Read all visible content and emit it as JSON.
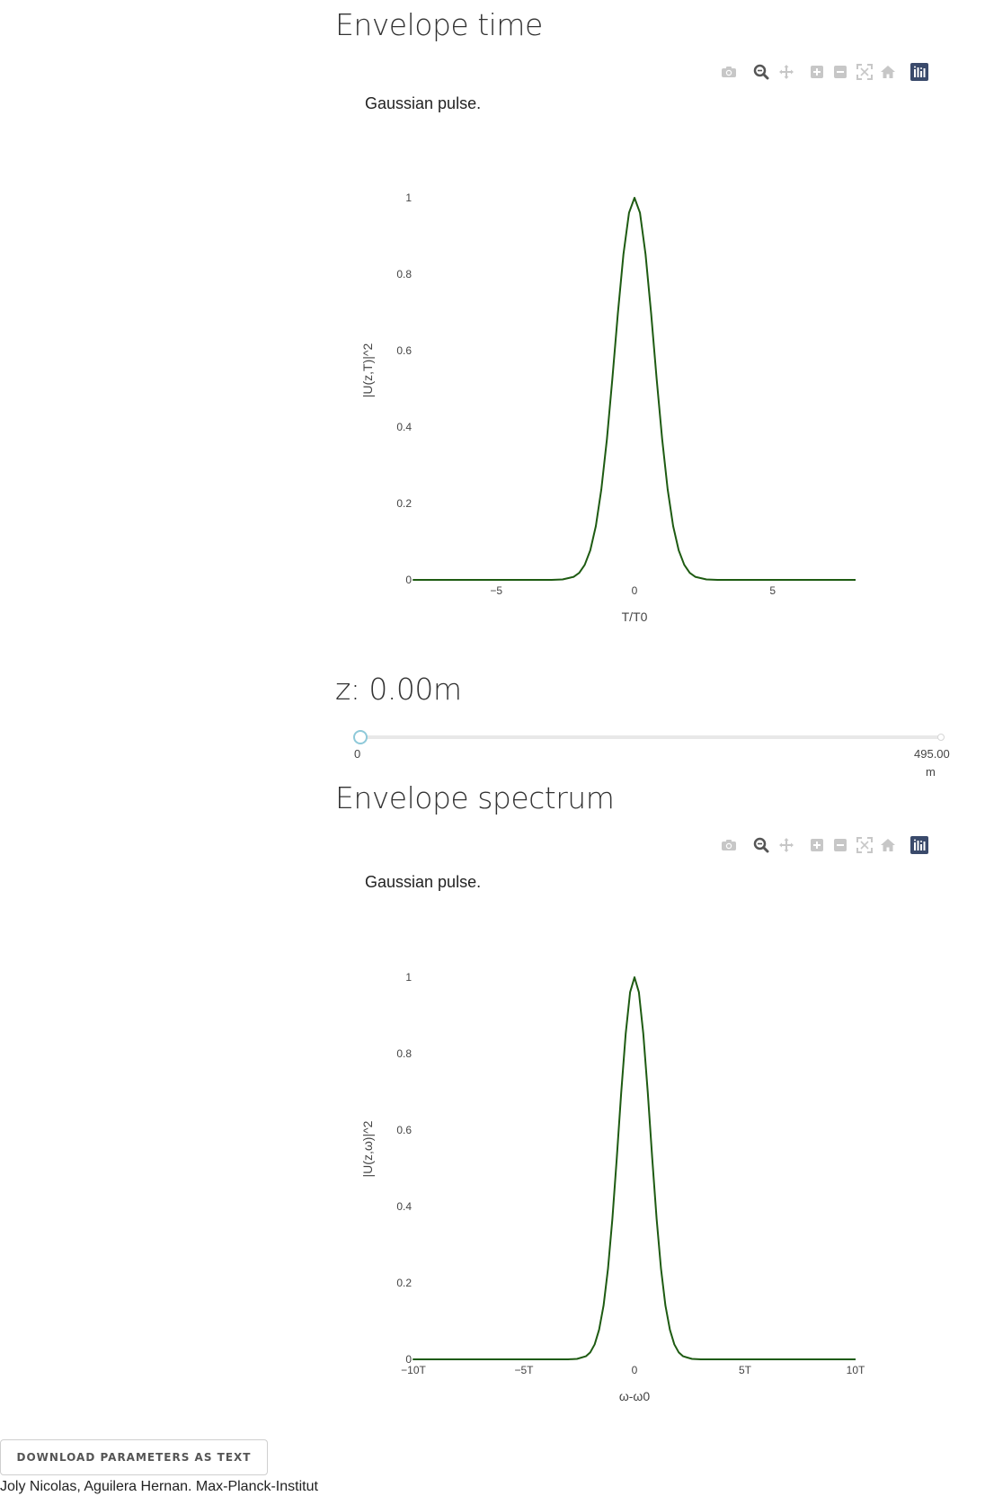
{
  "sections": {
    "time": {
      "title": "Envelope time"
    },
    "spectrum": {
      "title": "Envelope spectrum"
    }
  },
  "slider": {
    "label": "z: 0.00m",
    "min_label": "0",
    "max_label": "495.00",
    "max_unit": "m",
    "value": 0,
    "min": 0,
    "max": 495
  },
  "modebar": {
    "icons": [
      "camera-icon",
      "zoom-icon",
      "pan-icon",
      "zoom-in-icon",
      "zoom-out-icon",
      "autoscale-icon",
      "reset-axes-icon",
      "plotly-logo-icon"
    ]
  },
  "download_button": {
    "label": "DOWNLOAD PARAMETERS AS TEXT"
  },
  "footer": {
    "credits": "Joly Nicolas, Aguilera Hernan. Max-Planck-Institut"
  },
  "colors": {
    "line": "#1e5b12",
    "slider_handle": "#8ec9d9",
    "logo": "#3a4a6b"
  },
  "chart_data": [
    {
      "type": "line",
      "title": "Gaussian pulse.",
      "xlabel": "T/T0",
      "ylabel": "|U(z,T)|^2",
      "xlim": [
        -8,
        8
      ],
      "ylim": [
        0,
        1
      ],
      "x_ticks": [
        -5,
        0,
        5
      ],
      "x_tick_labels": [
        "−5",
        "0",
        "5"
      ],
      "y_ticks": [
        0,
        0.2,
        0.4,
        0.6,
        0.8,
        1
      ],
      "y_tick_labels": [
        "0",
        "0.2",
        "0.4",
        "0.6",
        "0.8",
        "1"
      ],
      "grid": false,
      "series": [
        {
          "x": [
            -8,
            -3,
            -2.6,
            -2.2,
            -2,
            -1.8,
            -1.6,
            -1.4,
            -1.2,
            -1,
            -0.8,
            -0.6,
            -0.4,
            -0.2,
            0,
            0.2,
            0.4,
            0.6,
            0.8,
            1,
            1.2,
            1.4,
            1.6,
            1.8,
            2,
            2.2,
            2.6,
            3,
            8
          ],
          "y": [
            0,
            0.0001,
            0.0012,
            0.0079,
            0.0183,
            0.0392,
            0.0773,
            0.1409,
            0.2369,
            0.3679,
            0.5273,
            0.6977,
            0.8521,
            0.9608,
            1,
            0.9608,
            0.8521,
            0.6977,
            0.5273,
            0.3679,
            0.2369,
            0.1409,
            0.0773,
            0.0392,
            0.0183,
            0.0079,
            0.0012,
            0.0001,
            0
          ]
        }
      ]
    },
    {
      "type": "line",
      "title": "Gaussian pulse.",
      "xlabel": "ω-ω0",
      "ylabel": "|U(z,ω)|^2",
      "xlim": [
        -10,
        10
      ],
      "ylim": [
        0,
        1
      ],
      "x_ticks": [
        -10,
        -5,
        0,
        5,
        10
      ],
      "x_tick_labels": [
        "−10T",
        "−5T",
        "0",
        "5T",
        "10T"
      ],
      "y_ticks": [
        0,
        0.2,
        0.4,
        0.6,
        0.8,
        1
      ],
      "y_tick_labels": [
        "0",
        "0.2",
        "0.4",
        "0.6",
        "0.8",
        "1"
      ],
      "grid": false,
      "series": [
        {
          "x": [
            -10,
            -3,
            -2.6,
            -2.2,
            -2,
            -1.8,
            -1.6,
            -1.4,
            -1.2,
            -1,
            -0.8,
            -0.6,
            -0.4,
            -0.2,
            0,
            0.2,
            0.4,
            0.6,
            0.8,
            1,
            1.2,
            1.4,
            1.6,
            1.8,
            2,
            2.2,
            2.6,
            3,
            10
          ],
          "y": [
            0,
            0.0001,
            0.0012,
            0.0079,
            0.0183,
            0.0392,
            0.0773,
            0.1409,
            0.2369,
            0.3679,
            0.5273,
            0.6977,
            0.8521,
            0.9608,
            1,
            0.9608,
            0.8521,
            0.6977,
            0.5273,
            0.3679,
            0.2369,
            0.1409,
            0.0773,
            0.0392,
            0.0183,
            0.0079,
            0.0012,
            0.0001,
            0
          ]
        }
      ]
    }
  ]
}
